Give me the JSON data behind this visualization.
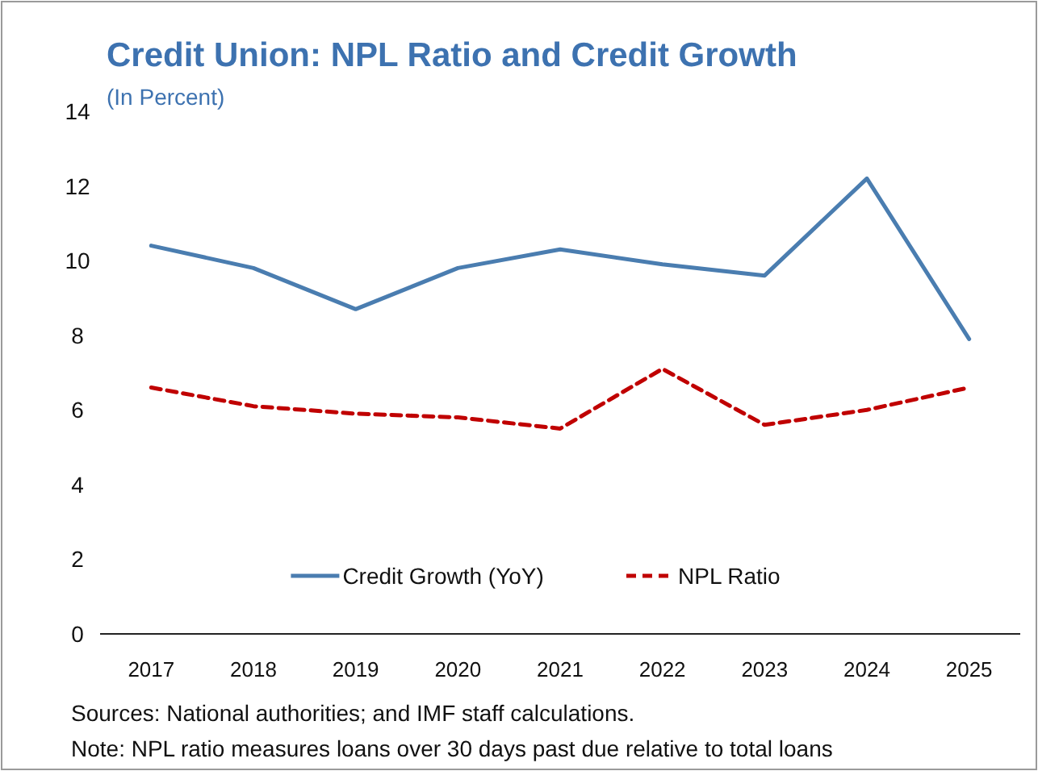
{
  "chart_data": {
    "type": "line",
    "title": "Credit Union: NPL Ratio and Credit Growth",
    "subtitle": "(In Percent)",
    "categories": [
      "2017",
      "2018",
      "2019",
      "2020",
      "2021",
      "2022",
      "2023",
      "2024",
      "2025"
    ],
    "series": [
      {
        "name": "Credit Growth (YoY)",
        "color": "#4a7db0",
        "values": [
          10.4,
          9.8,
          8.7,
          9.8,
          10.3,
          9.9,
          9.6,
          12.2,
          7.9
        ],
        "line_style": "solid"
      },
      {
        "name": "NPL Ratio",
        "color": "#c00000",
        "values": [
          6.6,
          6.1,
          5.9,
          5.8,
          5.5,
          7.1,
          5.6,
          6.0,
          6.6
        ],
        "line_style": "dashed"
      }
    ],
    "ylim": [
      0,
      14
    ],
    "yticks": [
      0,
      2,
      4,
      6,
      8,
      10,
      12,
      14
    ],
    "grid": false,
    "legend": "bottom",
    "marker": "none",
    "annotations": [
      "Sources: National authorities; and IMF staff calculations.",
      "Note: NPL ratio measures loans over 30 days past due relative to total loans"
    ]
  }
}
